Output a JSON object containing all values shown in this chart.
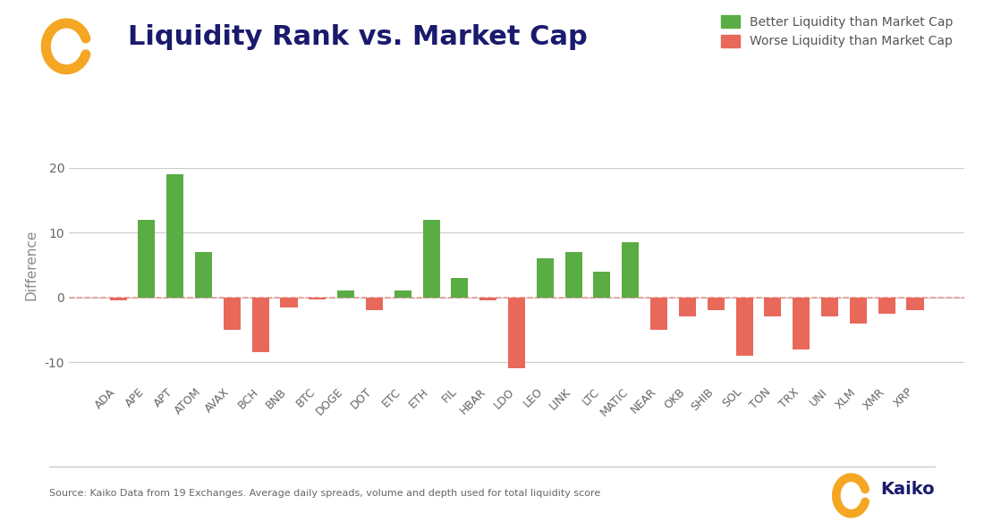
{
  "categories": [
    "ADA",
    "APE",
    "APT",
    "ATOM",
    "AVAX",
    "BCH",
    "BNB",
    "BTC",
    "DOGE",
    "DOT",
    "ETC",
    "ETH",
    "FIL",
    "HBAR",
    "LDO",
    "LEO",
    "LINK",
    "LTC",
    "MATIC",
    "NEAR",
    "OKB",
    "SHIB",
    "SOL",
    "TON",
    "TRX",
    "UNI",
    "XLM",
    "XMR",
    "XRP"
  ],
  "values": [
    -0.5,
    12,
    19,
    7,
    -5,
    -8.5,
    -1.5,
    -0.3,
    1,
    -2,
    1,
    12,
    3,
    -0.5,
    -11,
    6,
    7,
    4,
    8.5,
    -5,
    -3,
    -2,
    -9,
    -3,
    -8,
    -3,
    -4,
    -2.5,
    -2
  ],
  "green_color": "#5aac44",
  "red_color": "#e8685a",
  "title": "Liquidity Rank vs. Market Cap",
  "ylabel": "Difference",
  "ylim": [
    -13,
    23
  ],
  "yticks": [
    -10,
    0,
    10,
    20
  ],
  "legend_green": "Better Liquidity than Market Cap",
  "legend_red": "Worse Liquidity than Market Cap",
  "source_text": "Source: Kaiko Data from 19 Exchanges. Average daily spreads, volume and depth used for total liquidity score",
  "title_color": "#1a1a6e",
  "axis_label_color": "#888888",
  "grid_color": "#cccccc",
  "background_color": "#ffffff"
}
